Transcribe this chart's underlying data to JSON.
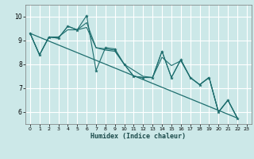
{
  "xlabel": "Humidex (Indice chaleur)",
  "bg_color": "#cce8e8",
  "grid_color": "#ffffff",
  "line_color": "#1e6e6e",
  "xlim": [
    -0.5,
    23.5
  ],
  "ylim": [
    5.5,
    10.5
  ],
  "yticks": [
    6,
    7,
    8,
    9,
    10
  ],
  "xticks": [
    0,
    1,
    2,
    3,
    4,
    5,
    6,
    7,
    8,
    9,
    10,
    11,
    12,
    13,
    14,
    15,
    16,
    17,
    18,
    19,
    20,
    21,
    22,
    23
  ],
  "line1": [
    9.3,
    8.4,
    9.15,
    9.1,
    9.6,
    9.45,
    10.05,
    7.75,
    8.7,
    8.65,
    8.0,
    7.5,
    7.45,
    7.45,
    8.55,
    7.45,
    8.2,
    7.45,
    7.15,
    7.45,
    6.0,
    6.5,
    5.75
  ],
  "line2": [
    9.3,
    8.4,
    9.15,
    9.15,
    9.45,
    9.45,
    9.75,
    8.7,
    8.65,
    8.6,
    8.0,
    7.75,
    7.5,
    7.45,
    8.3,
    7.95,
    8.15,
    7.45,
    7.15,
    7.45,
    6.0,
    6.5,
    5.75
  ],
  "line3": [
    9.3,
    8.4,
    9.15,
    9.1,
    9.6,
    9.45,
    9.55,
    8.7,
    8.6,
    8.55,
    8.0,
    7.5,
    7.45,
    7.45,
    8.55,
    7.45,
    8.2,
    7.45,
    7.15,
    7.45,
    6.0,
    6.5,
    5.75
  ],
  "line_trend_x": [
    0,
    22
  ],
  "line_trend_y": [
    9.3,
    5.75
  ]
}
